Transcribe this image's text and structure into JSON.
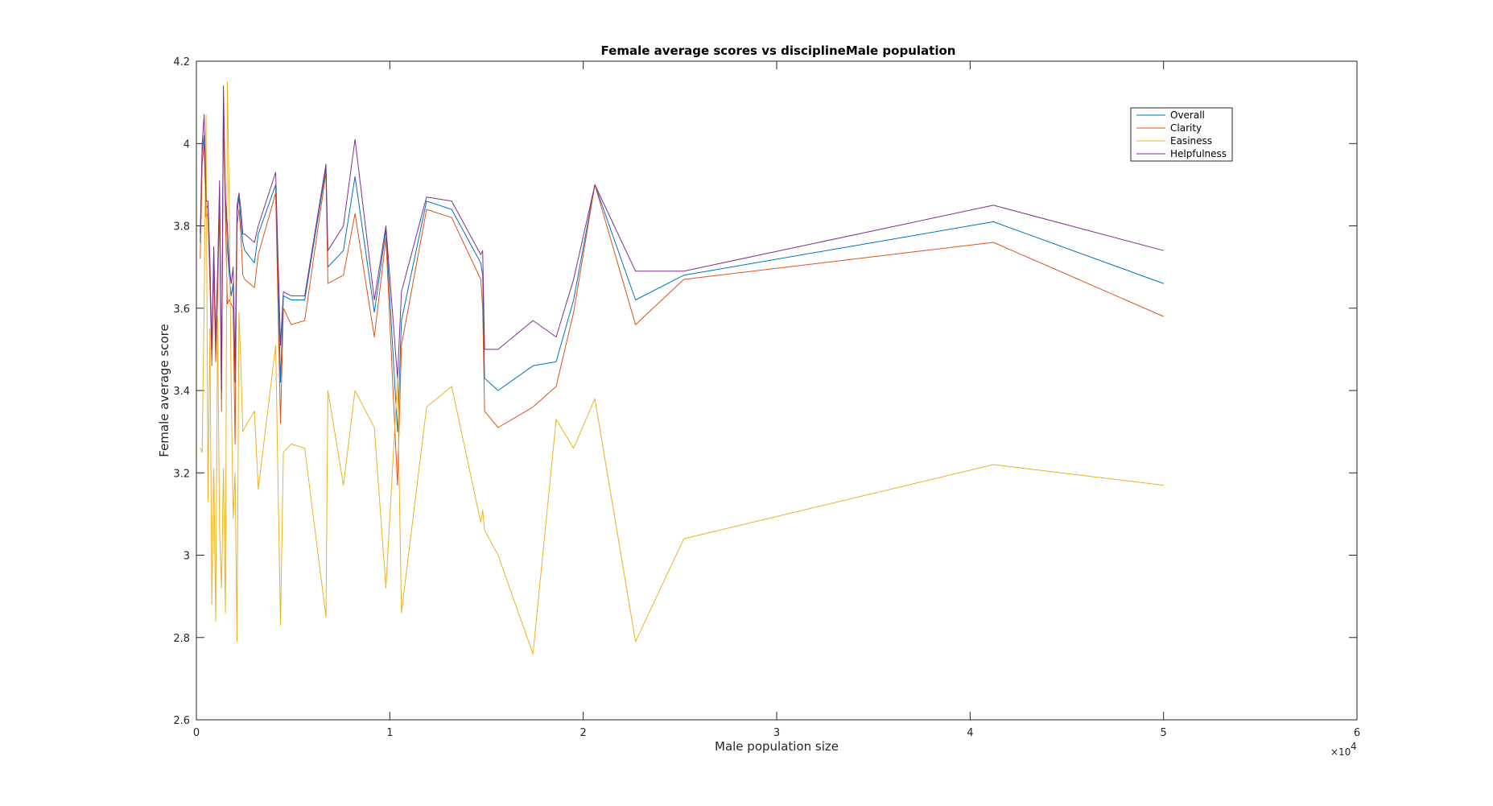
{
  "chart_data": {
    "type": "line",
    "title": "Female average scores vs disciplineMale population",
    "xlabel": "Male population size",
    "ylabel": "Female average score",
    "x_exponent_label": "×10",
    "x_exponent_power": "4",
    "xlim": [
      0,
      60000
    ],
    "ylim": [
      2.6,
      4.2
    ],
    "xticks": [
      0,
      10000,
      20000,
      30000,
      40000,
      50000,
      60000
    ],
    "xtick_labels": [
      "0",
      "1",
      "2",
      "3",
      "4",
      "5",
      "6"
    ],
    "yticks": [
      2.6,
      2.8,
      3.0,
      3.2,
      3.4,
      3.6,
      3.8,
      4.0,
      4.2
    ],
    "ytick_labels": [
      "2.6",
      "2.8",
      "3",
      "3.2",
      "3.4",
      "3.6",
      "3.8",
      "4",
      "4.2"
    ],
    "grid": false,
    "legend_position": "top-right",
    "x": [
      200,
      300,
      400,
      500,
      600,
      700,
      800,
      900,
      1000,
      1100,
      1200,
      1300,
      1400,
      1500,
      1600,
      1700,
      1800,
      1900,
      2000,
      2100,
      2200,
      2300,
      2400,
      2500,
      3000,
      3200,
      4100,
      4350,
      4500,
      4900,
      5600,
      6700,
      6800,
      7600,
      8200,
      9200,
      9800,
      10400,
      10600,
      11900,
      13200,
      14700,
      14800,
      14900,
      15600,
      17400,
      18600,
      19500,
      20600,
      22700,
      25200,
      41200,
      50000
    ],
    "series": [
      {
        "name": "Overall",
        "color": "#0072BD",
        "values": [
          3.76,
          3.98,
          4.02,
          3.84,
          3.85,
          3.7,
          3.48,
          3.74,
          3.51,
          3.66,
          3.89,
          3.38,
          4.1,
          3.85,
          3.75,
          3.68,
          3.63,
          3.66,
          3.42,
          3.83,
          3.87,
          3.81,
          3.76,
          3.74,
          3.71,
          3.78,
          3.9,
          3.42,
          3.63,
          3.62,
          3.62,
          3.94,
          3.7,
          3.74,
          3.92,
          3.59,
          3.79,
          3.3,
          3.57,
          3.86,
          3.84,
          3.71,
          3.68,
          3.43,
          3.4,
          3.46,
          3.47,
          3.62,
          3.9,
          3.62,
          3.68,
          3.81,
          3.66
        ]
      },
      {
        "name": "Clarity",
        "color": "#D95319",
        "values": [
          3.72,
          3.95,
          4.0,
          3.82,
          3.83,
          3.66,
          3.46,
          3.7,
          3.47,
          3.63,
          3.86,
          3.35,
          4.08,
          3.82,
          3.61,
          3.62,
          3.61,
          3.6,
          3.27,
          3.8,
          3.84,
          3.78,
          3.68,
          3.67,
          3.65,
          3.73,
          3.88,
          3.32,
          3.6,
          3.56,
          3.57,
          3.93,
          3.66,
          3.68,
          3.83,
          3.53,
          3.77,
          3.17,
          3.51,
          3.84,
          3.82,
          3.67,
          3.6,
          3.35,
          3.31,
          3.36,
          3.41,
          3.59,
          3.9,
          3.56,
          3.67,
          3.76,
          3.58
        ]
      },
      {
        "name": "Easiness",
        "color": "#EDB120",
        "values": [
          3.26,
          3.25,
          3.6,
          4.07,
          3.13,
          3.55,
          2.88,
          3.21,
          2.84,
          3.58,
          3.06,
          2.92,
          3.21,
          2.86,
          4.15,
          3.84,
          3.4,
          3.09,
          3.2,
          2.79,
          3.59,
          3.46,
          3.3,
          3.31,
          3.35,
          3.16,
          3.51,
          2.83,
          3.25,
          3.27,
          3.26,
          2.85,
          3.4,
          3.17,
          3.4,
          3.31,
          2.92,
          3.43,
          2.86,
          3.36,
          3.41,
          3.08,
          3.11,
          3.06,
          3.0,
          2.76,
          3.33,
          3.26,
          3.38,
          2.79,
          3.04,
          3.22,
          3.17
        ]
      },
      {
        "name": "Helpfulness",
        "color": "#7E2F8E",
        "values": [
          3.78,
          4.0,
          4.07,
          3.86,
          3.86,
          3.72,
          3.5,
          3.75,
          3.52,
          3.69,
          3.91,
          3.4,
          4.14,
          3.87,
          3.8,
          3.7,
          3.66,
          3.7,
          3.45,
          3.85,
          3.88,
          3.84,
          3.78,
          3.78,
          3.76,
          3.8,
          3.93,
          3.51,
          3.64,
          3.63,
          3.63,
          3.95,
          3.74,
          3.8,
          4.01,
          3.62,
          3.8,
          3.43,
          3.64,
          3.87,
          3.86,
          3.73,
          3.74,
          3.5,
          3.5,
          3.57,
          3.53,
          3.67,
          3.9,
          3.69,
          3.69,
          3.85,
          3.74
        ]
      }
    ]
  }
}
